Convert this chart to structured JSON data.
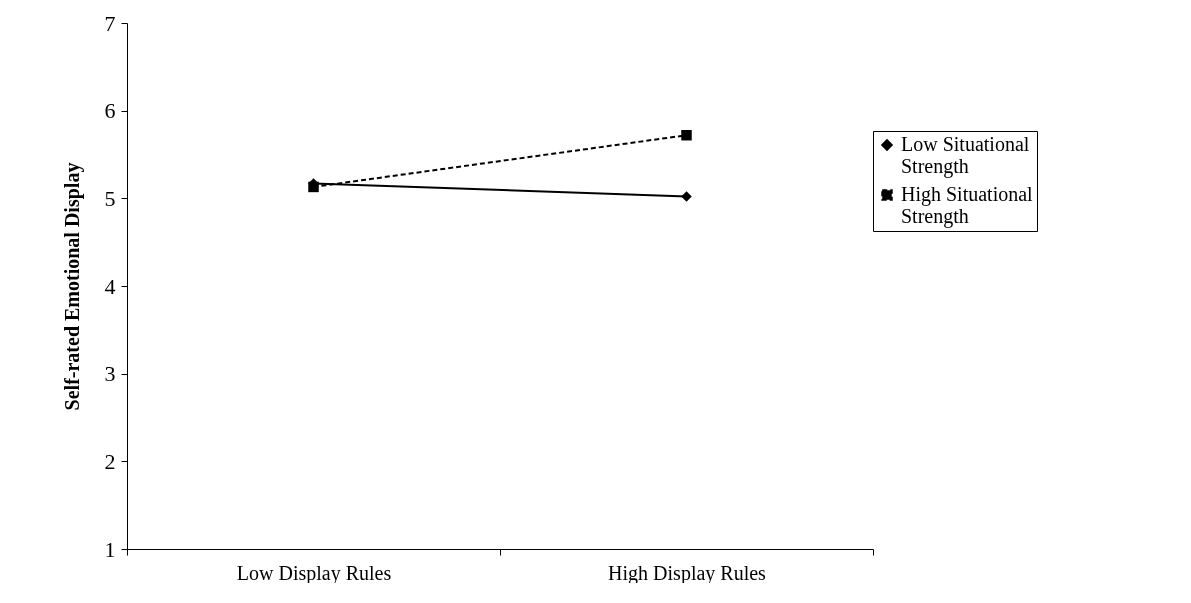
{
  "chart_data": {
    "type": "line",
    "ylabel": "Self-rated Emotional Display",
    "categories": [
      "Low Display Rules",
      "High Display Rules"
    ],
    "series": [
      {
        "name": "Low Situational Strength",
        "color": "#000000",
        "values": [
          5.17,
          5.02
        ],
        "marker": "diamond",
        "line_style": "solid"
      },
      {
        "name": "High Situational Strength",
        "color": "#000000",
        "values": [
          5.13,
          5.72
        ],
        "marker": "square",
        "line_style": "dashed"
      }
    ],
    "ylim": [
      1,
      7
    ],
    "yticks": [
      1,
      2,
      3,
      4,
      5,
      6,
      7
    ],
    "grid": false,
    "legend": "right"
  }
}
